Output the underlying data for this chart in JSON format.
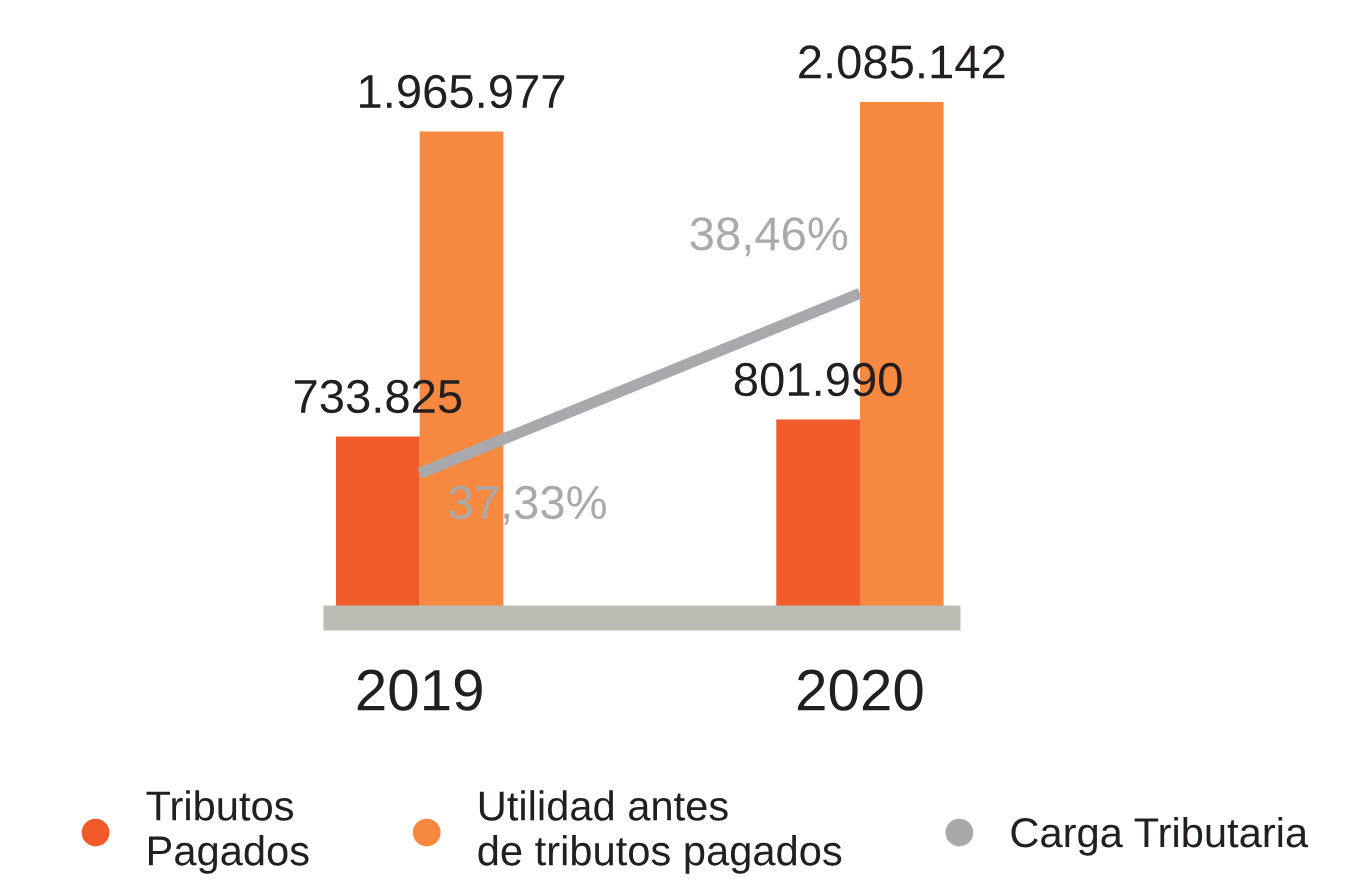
{
  "chart_data": {
    "type": "bar",
    "categories": [
      "2019",
      "2020"
    ],
    "series": [
      {
        "name": "Tributos\nPagados",
        "color": "#f15a29",
        "values": [
          733825,
          801990
        ],
        "value_labels": [
          "733.825",
          "801.990"
        ]
      },
      {
        "name": "Utilidad antes\nde tributos pagados",
        "color": "#f6883f",
        "values": [
          1965977,
          2085142
        ],
        "value_labels": [
          "1.965.977",
          "2.085.142"
        ]
      },
      {
        "name": "Carga Tributaria",
        "type": "line",
        "axis": "y2",
        "color": "#a7a9ac",
        "values": [
          37.33,
          38.46
        ],
        "value_labels": [
          "37,33%",
          "38,46%"
        ]
      }
    ],
    "grid": false,
    "legend": "bottom",
    "marker": "none"
  }
}
